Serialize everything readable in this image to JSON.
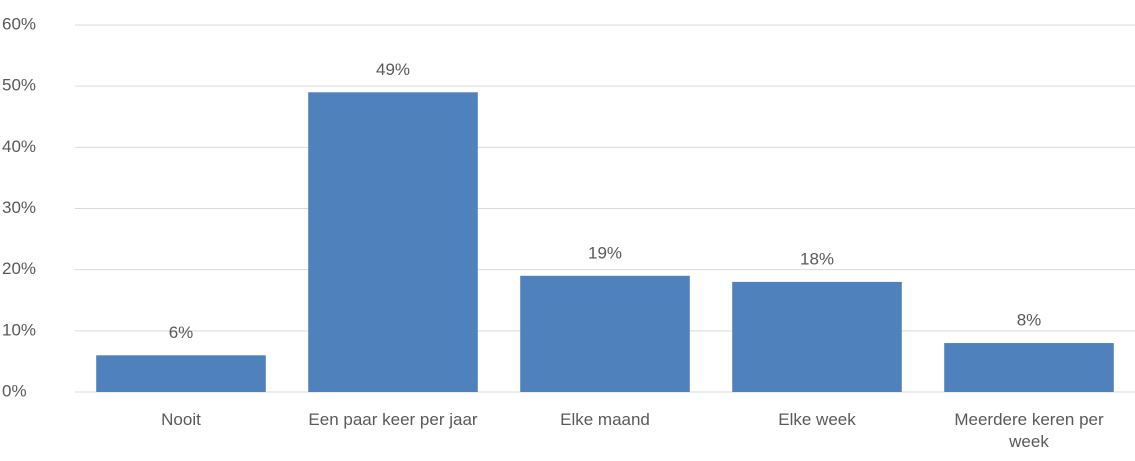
{
  "chart_data": {
    "type": "bar",
    "categories": [
      "Nooit",
      "Een paar keer per jaar",
      "Elke maand",
      "Elke week",
      "Meerdere keren per week"
    ],
    "values": [
      6,
      49,
      19,
      18,
      8
    ],
    "value_labels": [
      "6%",
      "49%",
      "19%",
      "18%",
      "8%"
    ],
    "color": "#4f81bd",
    "ylim": [
      0,
      60
    ],
    "yticks": [
      {
        "value": 0,
        "label": "0%"
      },
      {
        "value": 10,
        "label": "10%"
      },
      {
        "value": 20,
        "label": "20%"
      },
      {
        "value": 30,
        "label": "30%"
      },
      {
        "value": 40,
        "label": "40%"
      },
      {
        "value": 50,
        "label": "50%"
      },
      {
        "value": 60,
        "label": "60%"
      }
    ],
    "grid": true
  }
}
